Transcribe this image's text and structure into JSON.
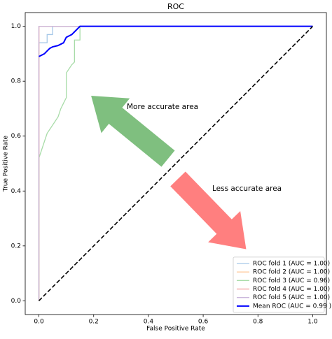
{
  "chart_data": {
    "type": "line",
    "title": "ROC",
    "x_label": "False Positive Rate",
    "y_label": "True Positive Rate",
    "xlim": [
      -0.05,
      1.05
    ],
    "ylim": [
      -0.05,
      1.05
    ],
    "xticks": [
      {
        "value": 0,
        "label": "0.0"
      },
      0.2,
      0.4,
      0.6,
      0.8,
      {
        "value": 1,
        "label": "1.0"
      }
    ],
    "yticks": [
      {
        "value": 0,
        "label": "0.0"
      },
      0.2,
      0.4,
      0.6,
      0.8,
      {
        "value": 1,
        "label": "1.0"
      }
    ],
    "legend": "lower right",
    "series": [
      {
        "name": "ROC fold 1 (AUC = 1.00)",
        "color": "#a6c8e8",
        "width": 1.3,
        "x": [
          0,
          0,
          0.03,
          0.03,
          0.05,
          0.05,
          1
        ],
        "values": [
          0,
          0.94,
          0.94,
          0.97,
          0.97,
          1,
          1
        ]
      },
      {
        "name": "ROC fold 2 (AUC = 1.00)",
        "color": "#ffc89a",
        "width": 1.3,
        "x": [
          0,
          0,
          1
        ],
        "values": [
          0,
          1,
          1
        ]
      },
      {
        "name": "ROC fold 3 (AUC = 0.96)",
        "color": "#a8dca8",
        "width": 1.3,
        "x": [
          0,
          0,
          0.01,
          0.03,
          0.07,
          0.08,
          0.09,
          0.1,
          0.1,
          0.12,
          0.13,
          0.13,
          0.15,
          0.15,
          1
        ],
        "values": [
          0,
          0.52,
          0.55,
          0.61,
          0.67,
          0.7,
          0.72,
          0.74,
          0.83,
          0.86,
          0.87,
          0.95,
          0.95,
          1,
          1
        ]
      },
      {
        "name": "ROC fold 4 (AUC = 1.00)",
        "color": "#f29a9a",
        "width": 1.3,
        "x": [
          0,
          0,
          1
        ],
        "values": [
          0,
          1,
          1
        ]
      },
      {
        "name": "ROC fold 5 (AUC = 1.00)",
        "color": "#cbb8dc",
        "width": 1.3,
        "x": [
          0,
          0,
          1
        ],
        "values": [
          0,
          1,
          1
        ]
      },
      {
        "name": "Mean ROC (AUC = 0.99 )",
        "color": "#0000ff",
        "width": 2,
        "x": [
          0,
          0.02,
          0.03,
          0.04,
          0.05,
          0.07,
          0.09,
          0.1,
          0.12,
          0.13,
          0.15,
          1
        ],
        "values": [
          0.89,
          0.9,
          0.91,
          0.92,
          0.925,
          0.93,
          0.94,
          0.96,
          0.97,
          0.98,
          1,
          1
        ]
      }
    ],
    "diagonal": {
      "x": [
        0,
        1
      ],
      "values": [
        0,
        1
      ],
      "color": "#000000"
    },
    "annotations": [
      "More accurate area",
      "Less accurate area"
    ]
  }
}
